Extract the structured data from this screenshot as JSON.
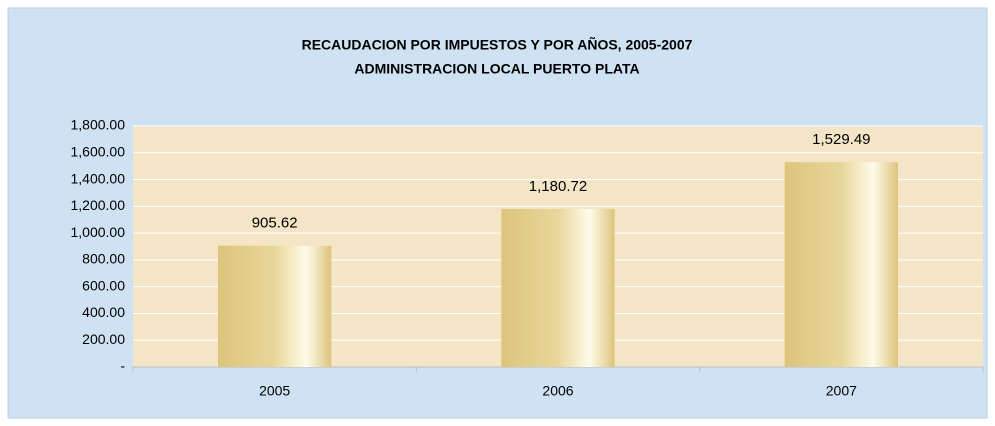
{
  "chart_data": {
    "type": "bar",
    "title": "RECAUDACION POR IMPUESTOS Y POR AÑOS, 2005-2007",
    "subtitle": "ADMINISTRACION LOCAL PUERTO PLATA",
    "categories": [
      "2005",
      "2006",
      "2007"
    ],
    "values": [
      905.62,
      1180.72,
      1529.49
    ],
    "value_labels": [
      "905.62",
      "1,180.72",
      "1,529.49"
    ],
    "color": "#dcc47c",
    "ylim": [
      0,
      1800
    ],
    "yticks": [
      {
        "value": 0,
        "label": "-"
      },
      {
        "value": 200,
        "label": "200.00"
      },
      {
        "value": 400,
        "label": "400.00"
      },
      {
        "value": 600,
        "label": "600.00"
      },
      {
        "value": 800,
        "label": "800.00"
      },
      {
        "value": 1000,
        "label": "1,000.00"
      },
      {
        "value": 1200,
        "label": "1,200.00"
      },
      {
        "value": 1400,
        "label": "1,400.00"
      },
      {
        "value": 1600,
        "label": "1,600.00"
      },
      {
        "value": 1800,
        "label": "1,800.00"
      }
    ],
    "grid": true
  }
}
